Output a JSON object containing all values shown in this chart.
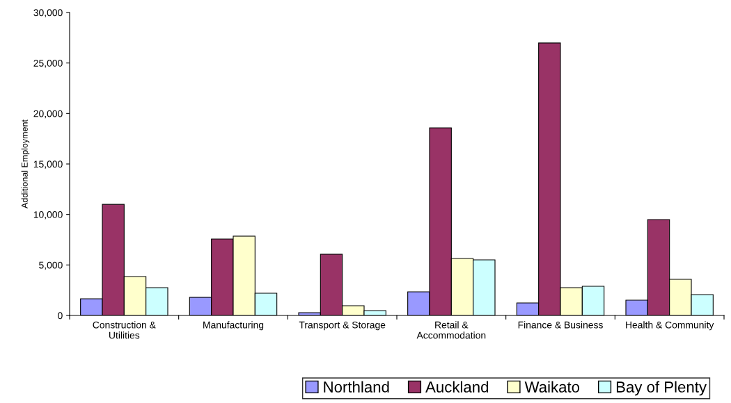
{
  "chart_data": {
    "type": "bar",
    "ylabel": "Additional Employment",
    "categories": [
      "Construction &\nUtilities",
      "Manufacturing",
      "Transport & Storage",
      "Retail &\nAccommodation",
      "Finance & Business",
      "Health & Community"
    ],
    "series": [
      {
        "name": "Northland",
        "color": "#9999ff",
        "values": [
          1650,
          1800,
          280,
          2340,
          1240,
          1510
        ]
      },
      {
        "name": "Auckland",
        "color": "#993366",
        "values": [
          11000,
          7570,
          6060,
          18580,
          26980,
          9500
        ]
      },
      {
        "name": "Waikato",
        "color": "#ffffcc",
        "values": [
          3850,
          7850,
          960,
          5640,
          2750,
          3580
        ]
      },
      {
        "name": "Bay of Plenty",
        "color": "#ccffff",
        "values": [
          2750,
          2200,
          480,
          5500,
          2890,
          2060
        ]
      }
    ],
    "ylim": [
      0,
      30000
    ],
    "yticks": [
      {
        "value": 0,
        "label": "0"
      },
      {
        "value": 5000,
        "label": "5,000"
      },
      {
        "value": 10000,
        "label": "10,000"
      },
      {
        "value": 15000,
        "label": "15,000"
      },
      {
        "value": 20000,
        "label": "20,000"
      },
      {
        "value": 25000,
        "label": "25,000"
      },
      {
        "value": 30000,
        "label": "30,000"
      }
    ],
    "grid": false,
    "legend": "bottom right"
  }
}
